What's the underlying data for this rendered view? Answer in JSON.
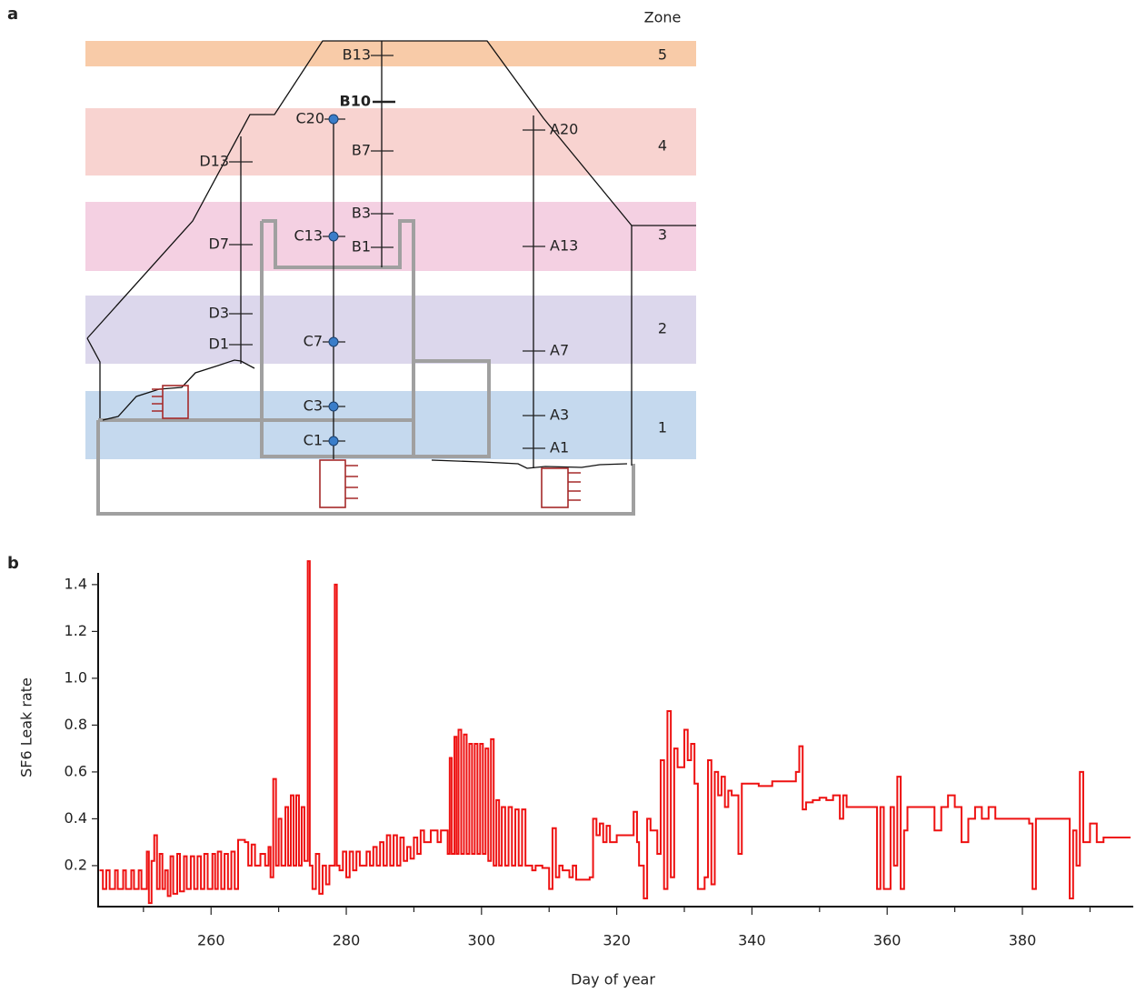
{
  "panel_a": {
    "label": "a",
    "zone_header": "Zone",
    "zones": [
      "5",
      "4",
      "3",
      "2",
      "1"
    ],
    "sensors": [
      "B13",
      "B10",
      "B7",
      "B3",
      "B1",
      "C20",
      "C13",
      "C7",
      "C3",
      "C1",
      "D13",
      "D7",
      "D3",
      "D1",
      "A20",
      "A13",
      "A7",
      "A3",
      "A1"
    ]
  },
  "chart_data": {
    "type": "line",
    "panel_label": "b",
    "x_label": "Day of year",
    "y_label": "SF6 Leak rate",
    "color": "#ee1111",
    "xlim": [
      243.3,
      396.4
    ],
    "xticks": [
      260,
      280,
      300,
      320,
      340,
      360,
      380
    ],
    "xminorticks": [
      250,
      270,
      290,
      310,
      330,
      350,
      370,
      390
    ],
    "ylim": [
      0.025,
      1.45
    ],
    "yticks": [
      0.2,
      0.4,
      0.6,
      0.8,
      {
        "value": 1,
        "label": "1.0"
      },
      1.2,
      1.4
    ],
    "x": [
      243.5,
      244,
      244.5,
      245,
      245.8,
      246.2,
      247,
      247.4,
      248.2,
      248.6,
      249.3,
      249.7,
      250.5,
      250.8,
      251.2,
      251.6,
      252,
      252.4,
      252.8,
      253.2,
      253.6,
      254,
      254.4,
      255,
      255.4,
      256,
      256.4,
      257,
      257.5,
      258,
      258.5,
      259,
      259.5,
      260.2,
      260.6,
      261,
      261.5,
      262,
      262.5,
      263,
      263.5,
      264,
      265,
      265.5,
      266,
      266.5,
      267.3,
      268,
      268.5,
      268.8,
      269.2,
      269.6,
      270,
      270.4,
      271,
      271.4,
      271.8,
      272.2,
      272.6,
      273,
      273.4,
      273.8,
      274.3,
      274.6,
      275,
      275.5,
      276,
      276.5,
      277,
      277.5,
      278.3,
      278.6,
      279,
      279.5,
      280,
      280.5,
      281,
      281.5,
      282,
      283,
      283.5,
      284,
      284.5,
      285,
      285.5,
      286,
      286.5,
      287,
      287.5,
      288,
      288.5,
      289,
      289.5,
      290,
      290.5,
      291,
      291.5,
      292.5,
      293.5,
      294,
      295,
      295.3,
      295.6,
      296,
      296.3,
      296.6,
      297,
      297.4,
      297.8,
      298.2,
      298.6,
      299,
      299.4,
      299.8,
      300.2,
      300.6,
      301,
      301.4,
      301.8,
      302.2,
      302.6,
      303,
      303.5,
      304,
      304.5,
      305,
      305.5,
      306,
      306.5,
      307.5,
      308,
      309,
      310,
      310.5,
      311,
      311.5,
      312,
      313,
      313.5,
      314,
      316,
      316.5,
      317,
      317.5,
      318,
      318.5,
      319,
      320,
      321,
      322.5,
      323,
      323.3,
      324,
      324.5,
      325,
      326,
      326.5,
      327,
      327.5,
      328,
      328.5,
      329,
      330,
      330.5,
      331,
      331.5,
      332,
      333,
      333.5,
      334,
      334.5,
      335,
      335.5,
      336,
      336.5,
      337,
      338,
      338.5,
      340,
      341,
      343,
      345,
      346.5,
      347,
      347.5,
      348,
      349,
      350,
      351,
      352,
      353,
      353.5,
      354,
      358,
      358.5,
      359,
      359.5,
      360.5,
      361,
      361.5,
      362,
      362.5,
      363,
      366,
      367,
      368,
      369,
      370,
      371,
      372,
      373,
      374,
      375,
      376,
      379,
      381,
      381.5,
      382,
      384,
      386.5,
      387,
      387.5,
      388,
      388.5,
      389,
      390,
      391,
      392,
      396
    ],
    "values": [
      0.18,
      0.1,
      0.18,
      0.1,
      0.18,
      0.1,
      0.18,
      0.1,
      0.18,
      0.1,
      0.18,
      0.1,
      0.26,
      0.04,
      0.22,
      0.33,
      0.1,
      0.25,
      0.1,
      0.18,
      0.07,
      0.24,
      0.08,
      0.25,
      0.09,
      0.24,
      0.1,
      0.24,
      0.1,
      0.24,
      0.1,
      0.25,
      0.1,
      0.25,
      0.1,
      0.26,
      0.1,
      0.25,
      0.1,
      0.26,
      0.1,
      0.31,
      0.3,
      0.2,
      0.29,
      0.2,
      0.25,
      0.2,
      0.28,
      0.15,
      0.57,
      0.2,
      0.4,
      0.2,
      0.45,
      0.2,
      0.5,
      0.2,
      0.5,
      0.2,
      0.45,
      0.22,
      1.5,
      0.2,
      0.1,
      0.25,
      0.08,
      0.2,
      0.12,
      0.2,
      1.4,
      0.2,
      0.18,
      0.26,
      0.15,
      0.26,
      0.18,
      0.26,
      0.2,
      0.26,
      0.2,
      0.28,
      0.2,
      0.3,
      0.2,
      0.33,
      0.2,
      0.33,
      0.2,
      0.32,
      0.22,
      0.28,
      0.23,
      0.32,
      0.25,
      0.35,
      0.3,
      0.35,
      0.3,
      0.35,
      0.25,
      0.66,
      0.25,
      0.75,
      0.25,
      0.78,
      0.25,
      0.76,
      0.25,
      0.72,
      0.25,
      0.72,
      0.25,
      0.72,
      0.25,
      0.7,
      0.22,
      0.74,
      0.2,
      0.48,
      0.2,
      0.45,
      0.2,
      0.45,
      0.2,
      0.44,
      0.2,
      0.44,
      0.2,
      0.18,
      0.2,
      0.19,
      0.1,
      0.36,
      0.15,
      0.2,
      0.18,
      0.15,
      0.2,
      0.14,
      0.15,
      0.4,
      0.33,
      0.38,
      0.3,
      0.37,
      0.3,
      0.33,
      0.33,
      0.43,
      0.3,
      0.2,
      0.06,
      0.4,
      0.35,
      0.25,
      0.65,
      0.1,
      0.86,
      0.15,
      0.7,
      0.62,
      0.78,
      0.65,
      0.72,
      0.55,
      0.1,
      0.15,
      0.65,
      0.12,
      0.6,
      0.5,
      0.58,
      0.45,
      0.52,
      0.5,
      0.25,
      0.55,
      0.55,
      0.54,
      0.56,
      0.56,
      0.6,
      0.71,
      0.44,
      0.47,
      0.48,
      0.49,
      0.48,
      0.5,
      0.4,
      0.5,
      0.45,
      0.45,
      0.1,
      0.45,
      0.1,
      0.45,
      0.2,
      0.58,
      0.1,
      0.35,
      0.45,
      0.45,
      0.35,
      0.45,
      0.5,
      0.45,
      0.3,
      0.4,
      0.45,
      0.4,
      0.45,
      0.4,
      0.4,
      0.38,
      0.1,
      0.4,
      0.4,
      0.4,
      0.06,
      0.35,
      0.2,
      0.6,
      0.3,
      0.38,
      0.3,
      0.32,
      0.32
    ]
  }
}
